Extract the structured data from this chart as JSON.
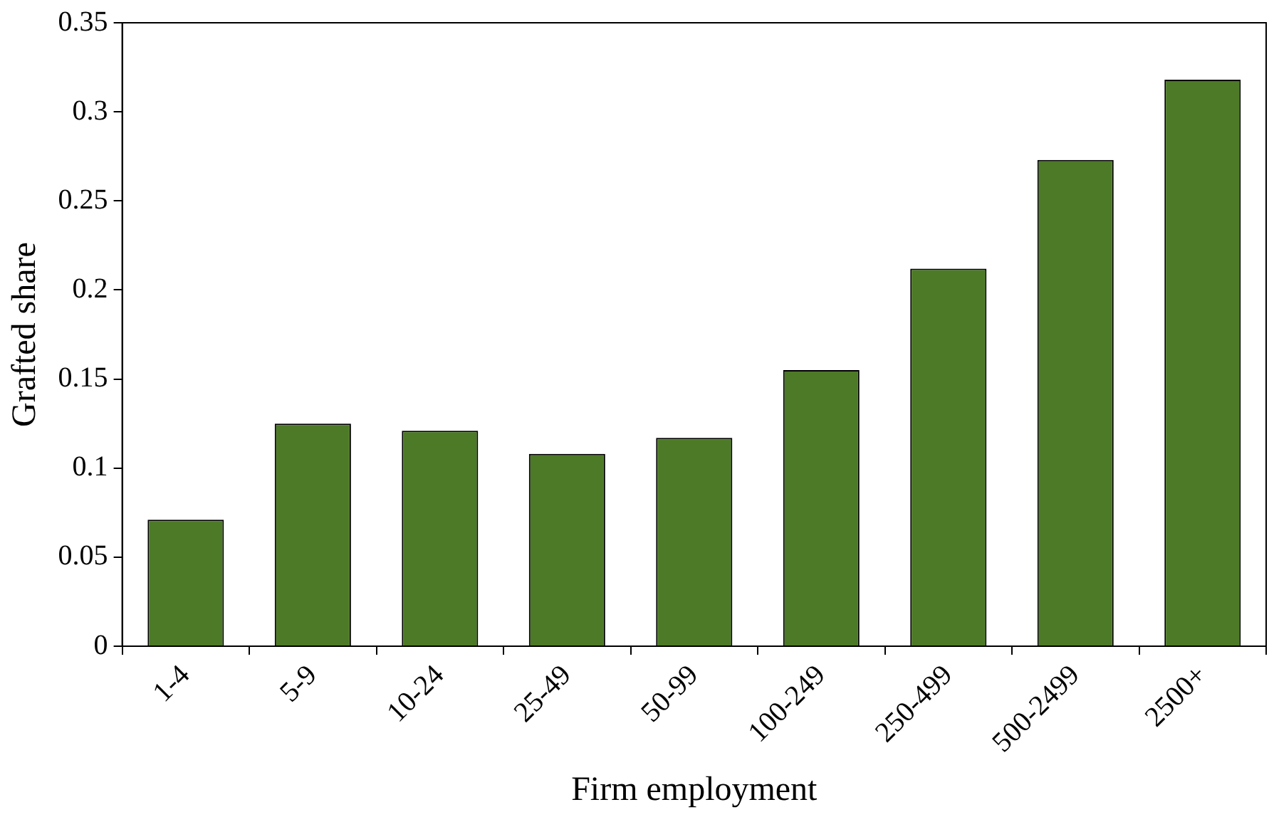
{
  "chart_data": {
    "type": "bar",
    "xlabel": "Firm employment",
    "ylabel": "Grafted share",
    "categories": [
      "1-4",
      "5-9",
      "10-24",
      "25-49",
      "50-99",
      "100-249",
      "250-499",
      "500-2499",
      "2500+"
    ],
    "values": [
      0.071,
      0.125,
      0.121,
      0.108,
      0.117,
      0.155,
      0.212,
      0.273,
      0.318
    ],
    "color": "#4d7a27",
    "ylim": [
      0,
      0.35
    ],
    "yticks": [
      0,
      0.05,
      0.1,
      0.15,
      0.2,
      0.25,
      0.3,
      0.35
    ],
    "grid": false,
    "legend": false
  }
}
